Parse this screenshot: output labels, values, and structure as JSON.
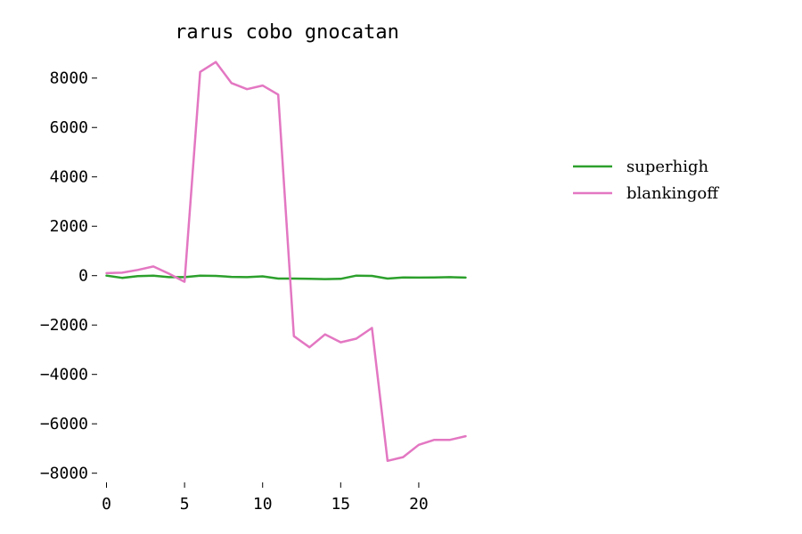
{
  "chart_data": {
    "type": "line",
    "title": "rarus cobo gnocatan",
    "xlabel": "",
    "ylabel": "",
    "x": [
      0,
      1,
      2,
      3,
      4,
      5,
      6,
      7,
      8,
      9,
      10,
      11,
      12,
      13,
      14,
      15,
      16,
      17,
      18,
      19,
      20,
      21,
      22,
      23
    ],
    "xlim": [
      -0.6,
      23.6
    ],
    "ylim": [
      -8300,
      9000
    ],
    "xticks": [
      0,
      5,
      10,
      15,
      20
    ],
    "yticks": [
      -8000,
      -6000,
      -4000,
      -2000,
      0,
      2000,
      4000,
      6000,
      8000
    ],
    "grid": false,
    "legend_position": "right",
    "series": [
      {
        "name": "superhigh",
        "color": "#2ca02c",
        "values": [
          0,
          -90,
          -20,
          0,
          -60,
          -60,
          0,
          -10,
          -50,
          -60,
          -30,
          -120,
          -120,
          -130,
          -140,
          -130,
          0,
          -10,
          -120,
          -70,
          -80,
          -70,
          -60,
          -80
        ]
      },
      {
        "name": "blankingoff",
        "color": "#e377c2",
        "values": [
          100,
          120,
          230,
          370,
          80,
          -250,
          8250,
          8650,
          7800,
          7550,
          7700,
          7330,
          -2450,
          -2900,
          -2380,
          -2700,
          -2550,
          -2120,
          -7500,
          -7350,
          -6850,
          -6650,
          -6650,
          -6500
        ]
      }
    ]
  }
}
